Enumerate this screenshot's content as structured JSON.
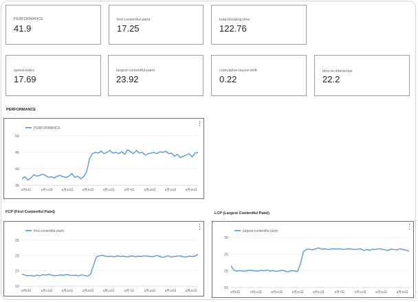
{
  "metrics": [
    {
      "label": "PERFORMANCE",
      "value": "41.9"
    },
    {
      "label": "first-contentful-paint",
      "value": "17.25"
    },
    {
      "label": "total-blocking-time",
      "value": "122.76"
    },
    {
      "label": "speed-index",
      "value": "17.69"
    },
    {
      "label": "largest-contentful-paint",
      "value": "23.92"
    },
    {
      "label": "cumulative-layout-shift",
      "value": "0.22"
    },
    {
      "label": "time-to-interactive",
      "value": "22.2"
    }
  ],
  "sections": {
    "performance": "PERFORMANCE",
    "fcp": "FCP  (First Contentful Paint)",
    "lcp": "LCP  (Largest Contentful Paint)"
  },
  "menu_glyph": "⋮",
  "chart_data": [
    {
      "type": "line",
      "title": "PERFORMANCE",
      "series": [
        {
          "name": "PERFORMANCE",
          "color": "#4a90e2",
          "y": [
            37,
            37.6,
            36.6,
            37.2,
            38.2,
            37.8,
            38,
            38.4,
            38,
            37.4,
            37.6,
            37.2,
            37.8,
            38,
            37.6,
            37.4,
            37.8,
            38.6,
            37.4,
            37.8,
            37,
            37.6,
            39,
            43,
            44.6,
            45,
            44.8,
            45.4,
            44.6,
            45,
            45.6,
            44.8,
            45,
            44.6,
            45.2,
            44.4,
            45.8,
            45.2,
            44.6,
            45.6,
            44.8,
            45,
            44.2,
            44.6,
            44.8,
            45,
            44.6,
            45.2,
            45,
            45.4,
            44.6,
            44.8,
            43.8,
            44.4,
            43.4,
            43.8,
            44.2,
            44.6,
            43.6,
            44.8,
            45
          ]
        }
      ],
      "ylim": [
        35,
        50
      ],
      "yticks": [
        35,
        40,
        45,
        50
      ],
      "xticks": [
        "6月6日",
        "6月14日",
        "6月22日",
        "6月30日",
        "6月11日",
        "6月7日",
        "6月18日",
        "6月16日",
        "6月25日"
      ],
      "legend": "top-left"
    },
    {
      "type": "line",
      "title": "FCP  (First Contentful Paint)",
      "series": [
        {
          "name": "first-contentful-paint",
          "color": "#4a90e2",
          "y": [
            14,
            13.6,
            13.4,
            13.5,
            13.3,
            13.6,
            13.4,
            13.8,
            13.6,
            13.9,
            13.6,
            13.4,
            13.5,
            13.7,
            13.6,
            13.8,
            13.6,
            13.5,
            13.6,
            13.4,
            13.7,
            13.5,
            13.3,
            13.9,
            17,
            19.6,
            19.9,
            20.1,
            19.8,
            19.7,
            19.8,
            19.6,
            19.9,
            19.7,
            19.8,
            19.6,
            19.7,
            19.9,
            19.6,
            19.8,
            19.7,
            19.9,
            19.8,
            19.7,
            19.6,
            20,
            19.8,
            19.4,
            19.6,
            19.9,
            19.5,
            19.7,
            19.8,
            19.9,
            19.6,
            19.5,
            19.8,
            19.7,
            19.8,
            20.4
          ]
        }
      ],
      "ylim": [
        10,
        25
      ],
      "yticks": [
        10,
        15,
        20,
        25
      ],
      "xticks": [
        "6月6日",
        "6月14日",
        "6月22日",
        "6月28日",
        "6月11日",
        "6月7日",
        "6月18日",
        "6月19日",
        "6月25日"
      ],
      "legend": "top-left"
    },
    {
      "type": "line",
      "title": "LCP  (Largest Contentful Paint)",
      "series": [
        {
          "name": "largest-contentful-paint",
          "color": "#4a90e2",
          "y": [
            21.5,
            20.2,
            19.9,
            20.1,
            19.9,
            20,
            20.2,
            20.1,
            20,
            19.9,
            20.2,
            20,
            20.3,
            19.9,
            20.1,
            19.8,
            20,
            20.2,
            19.9,
            19.7,
            20.1,
            20,
            19.8,
            22,
            25.8,
            26.4,
            26.5,
            26.3,
            26.6,
            26.9,
            26.5,
            26.6,
            26.4,
            26.5,
            26.6,
            26.5,
            26.6,
            26.4,
            26.5,
            26.6,
            26.5,
            26.4,
            26.5,
            26.6,
            26.1,
            26.4,
            26.2,
            26.5,
            26.4,
            26.6,
            26.5,
            26.3,
            26.1,
            26.5,
            26.4,
            26.3,
            26.6,
            26.4,
            26.2,
            25.9
          ]
        }
      ],
      "ylim": [
        15,
        30
      ],
      "yticks": [
        15,
        20,
        25,
        30
      ],
      "xticks": [
        "6月6日",
        "6月14日",
        "6月22日",
        "6月30日",
        "6月11日",
        "6月7日",
        "6月13日",
        "6月16日",
        "6月25日"
      ],
      "legend": "top-left"
    }
  ]
}
